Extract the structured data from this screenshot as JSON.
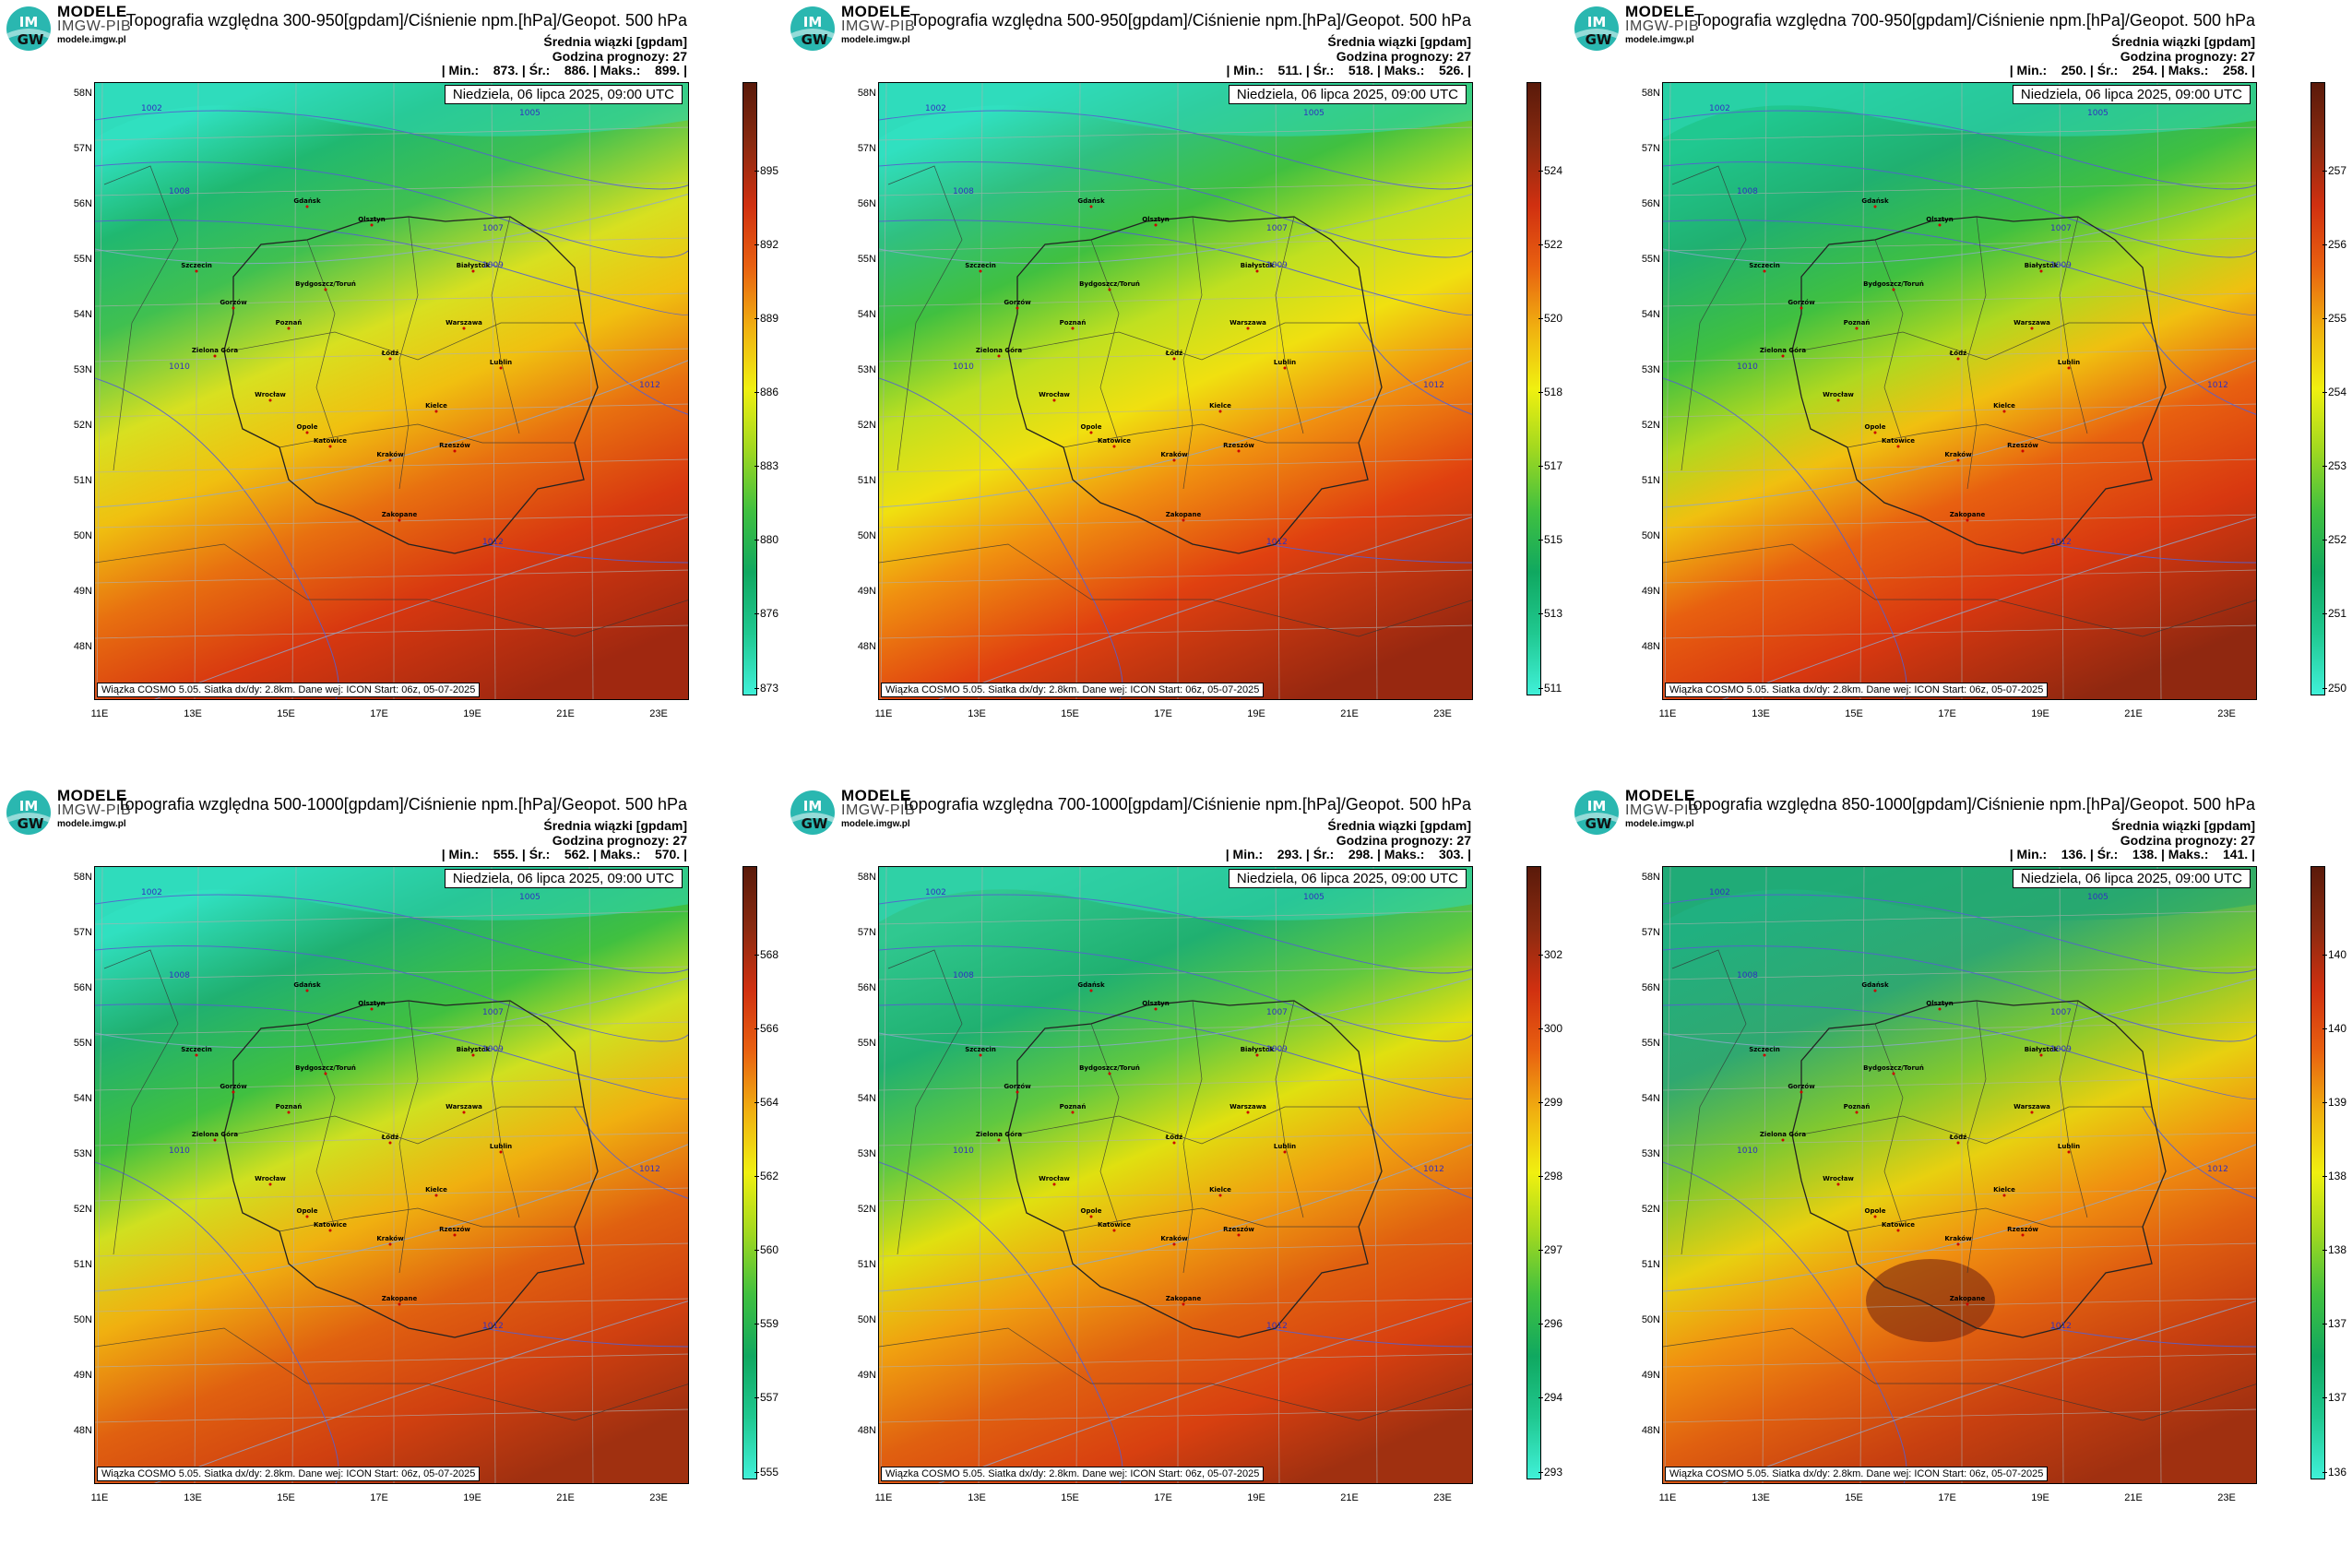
{
  "brand": {
    "top": "MODELE",
    "mid": "IMGW-PIB",
    "url": "modele.imgw.pl",
    "logo_text_top": "IM",
    "logo_text_bottom": "GW"
  },
  "common": {
    "subtitle1": "Średnia wiązki [gpdam]",
    "subtitle2": "Godzina prognozy: 27",
    "date": "Niedziela, 06 lipca 2025, 09:00 UTC",
    "footer": "Wiązka COSMO 5.05. Siatka dx/dy: 2.8km. Dane wej: ICON Start: 06z, 05-07-2025",
    "stats_min_label": "| Min.:",
    "stats_mean_label": "| Śr.:",
    "stats_max_label": "| Maks.:",
    "lat_labels": [
      "58N",
      "57N",
      "56N",
      "55N",
      "54N",
      "53N",
      "52N",
      "51N",
      "50N",
      "49N",
      "48N"
    ],
    "lon_labels": [
      "11E",
      "13E",
      "15E",
      "17E",
      "19E",
      "21E",
      "23E"
    ]
  },
  "cities": [
    "Gdańsk",
    "Olsztyn",
    "Białystok",
    "Szczecin",
    "Bydgoszcz/Toruń",
    "Gorzów",
    "Poznań",
    "Warszawa",
    "Zielona Góra",
    "Łódź",
    "Lublin",
    "Wrocław",
    "Opole",
    "Kielce",
    "Katowice",
    "Kraków",
    "Rzeszów",
    "Zakopane"
  ],
  "isobars": [
    "1002",
    "1005",
    "1007",
    "1008",
    "1009",
    "1010",
    "1012"
  ],
  "panels": [
    {
      "title": "Topografia względna 300-950[gpdam]/Ciśnienie npm.[hPa]/Geopot. 500 hPa",
      "min": "873.",
      "mean": "886.",
      "max": "899. |",
      "cbar_ticks": [
        "895",
        "892",
        "889",
        "886",
        "883",
        "880",
        "876",
        "873"
      ]
    },
    {
      "title": "Topografia względna 500-950[gpdam]/Ciśnienie npm.[hPa]/Geopot. 500 hPa",
      "min": "511.",
      "mean": "518.",
      "max": "526. |",
      "cbar_ticks": [
        "524",
        "522",
        "520",
        "518",
        "517",
        "515",
        "513",
        "511"
      ]
    },
    {
      "title": "Topografia względna 700-950[gpdam]/Ciśnienie npm.[hPa]/Geopot. 500 hPa",
      "min": "250.",
      "mean": "254.",
      "max": "258. |",
      "cbar_ticks": [
        "257",
        "256",
        "255",
        "254",
        "253",
        "252",
        "251",
        "250"
      ]
    },
    {
      "title": "Topografia względna 500-1000[gpdam]/Ciśnienie npm.[hPa]/Geopot. 500 hPa",
      "min": "555.",
      "mean": "562.",
      "max": "570. |",
      "cbar_ticks": [
        "568",
        "566",
        "564",
        "562",
        "560",
        "559",
        "557",
        "555"
      ]
    },
    {
      "title": "Topografia względna 700-1000[gpdam]/Ciśnienie npm.[hPa]/Geopot. 500 hPa",
      "min": "293.",
      "mean": "298.",
      "max": "303. |",
      "cbar_ticks": [
        "302",
        "300",
        "299",
        "298",
        "297",
        "296",
        "294",
        "293"
      ]
    },
    {
      "title": "Topografia względna 850-1000[gpdam]/Ciśnienie npm.[hPa]/Geopot. 500 hPa",
      "min": "136.",
      "mean": "138.",
      "max": "141. |",
      "cbar_ticks": [
        "140",
        "140",
        "139",
        "138",
        "138",
        "137",
        "137",
        "136"
      ]
    }
  ]
}
